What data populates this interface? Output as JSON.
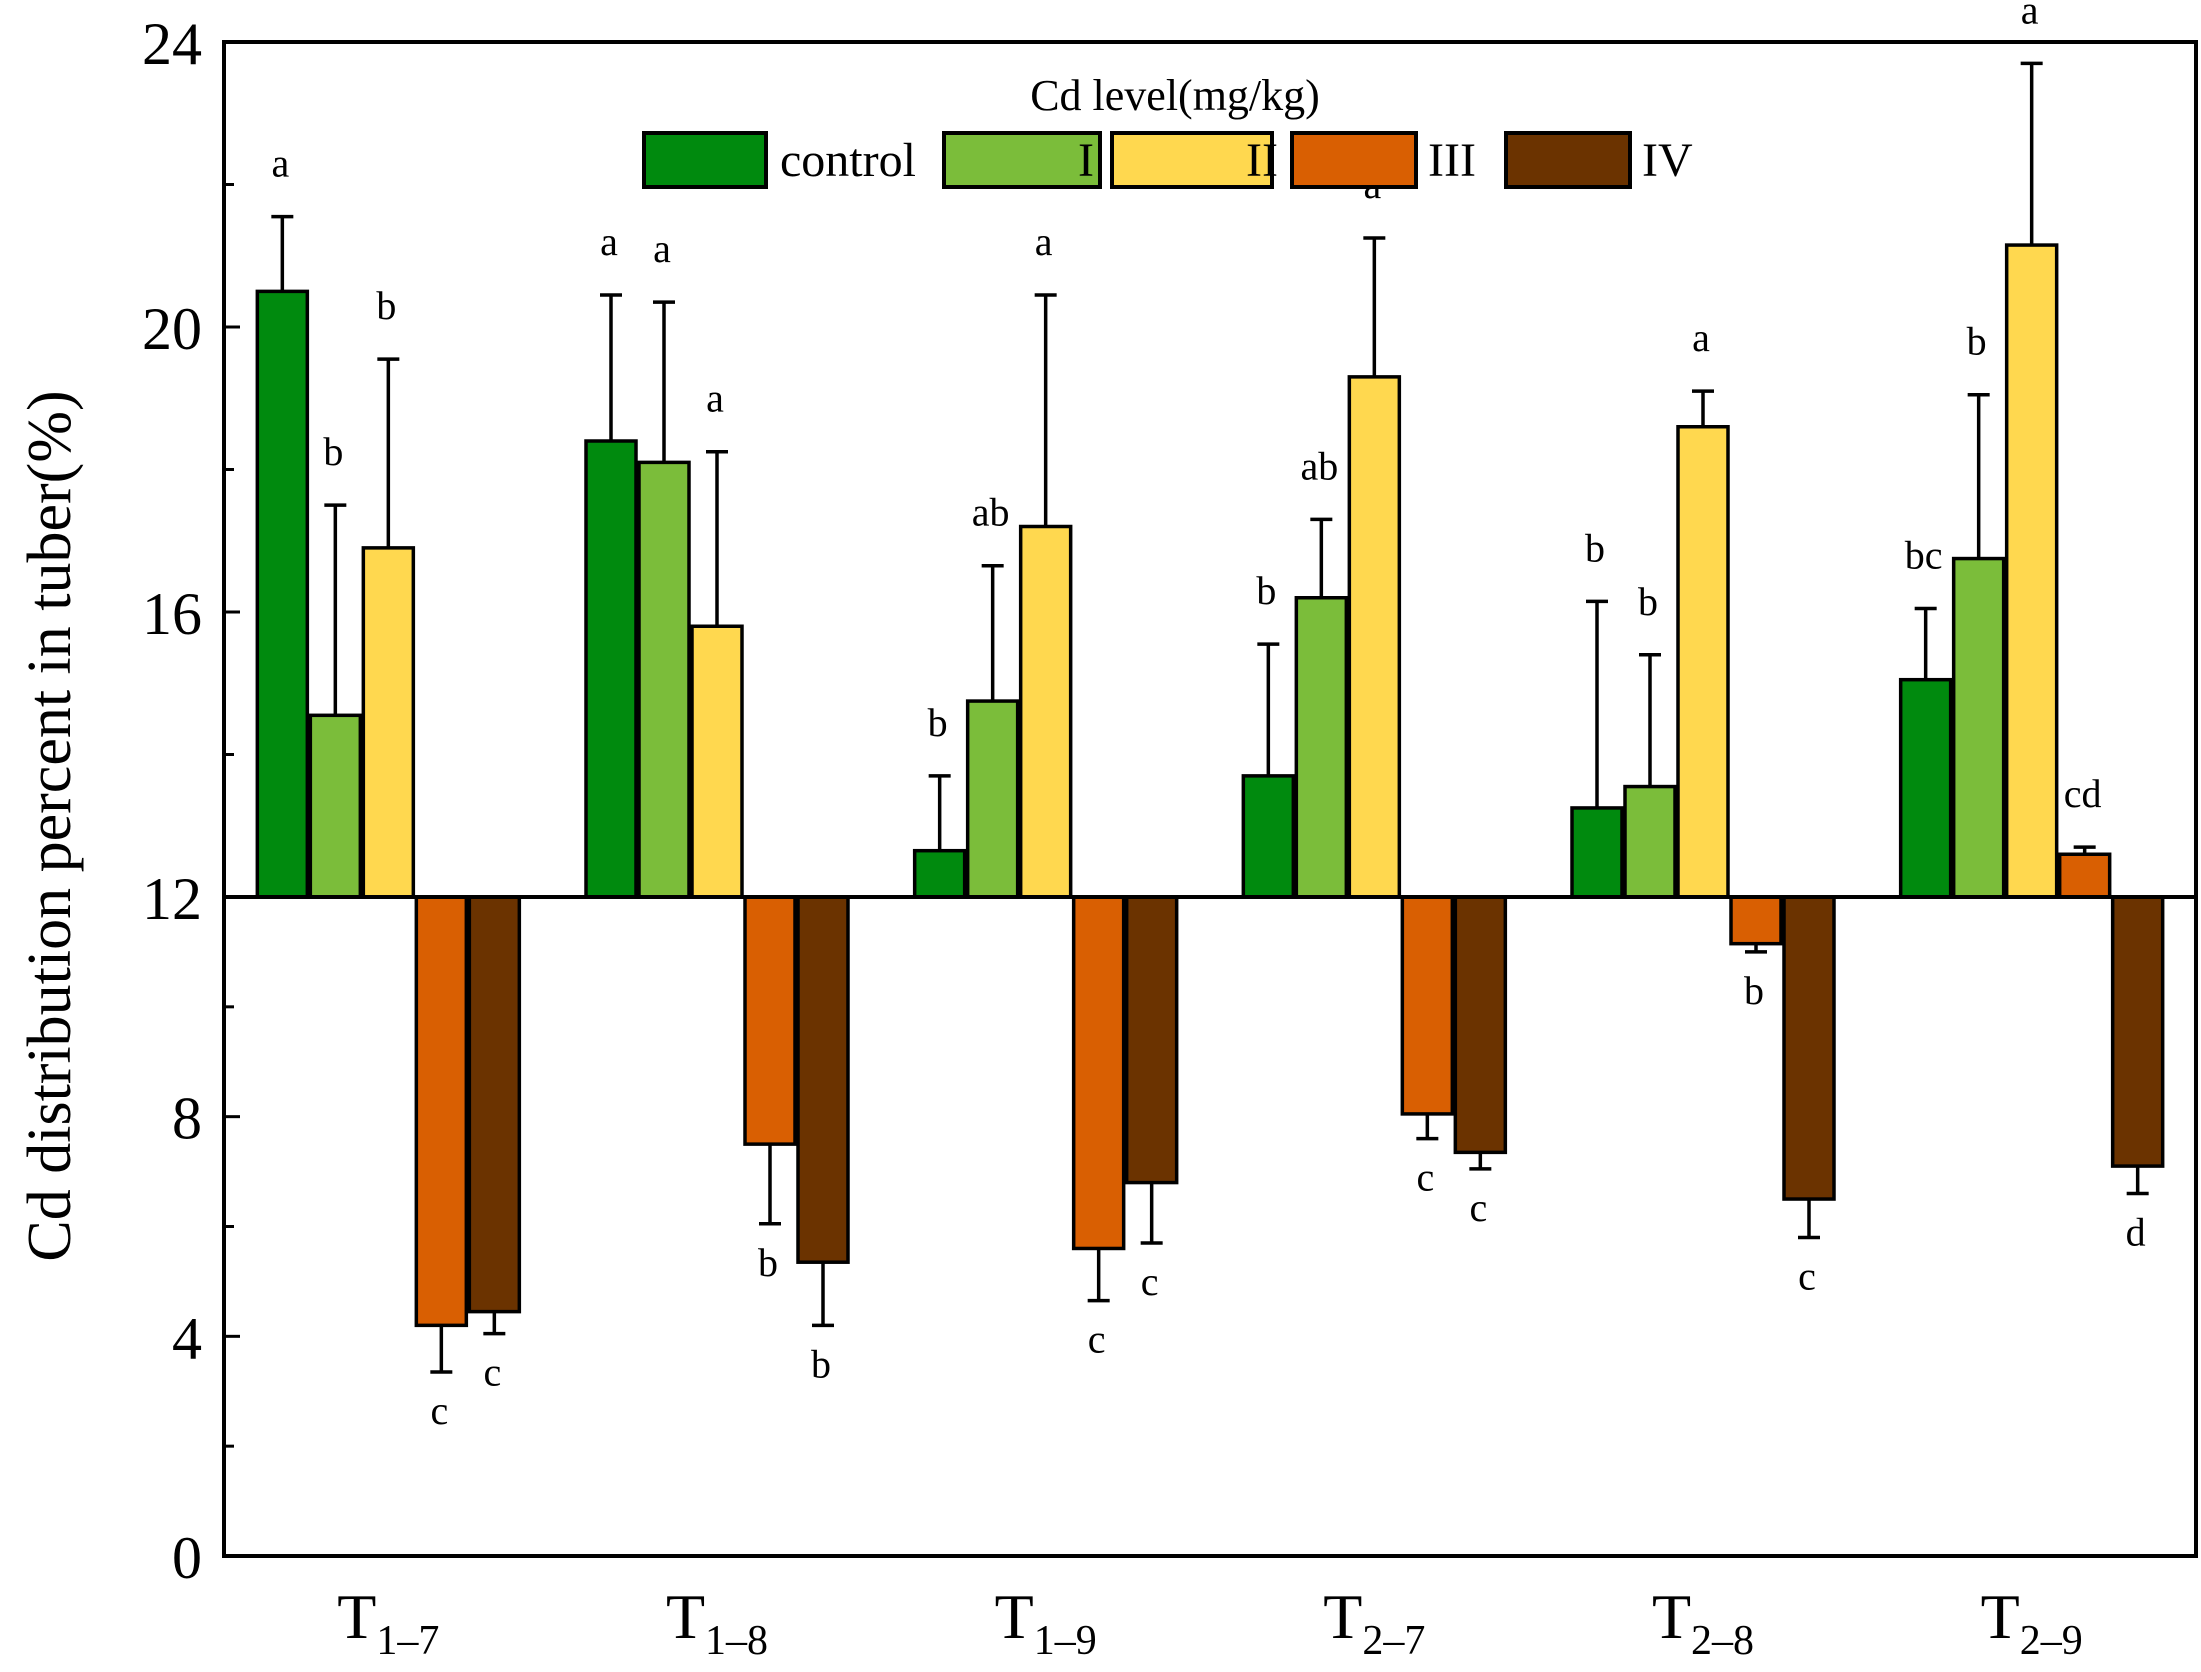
{
  "chart_data": {
    "type": "bar",
    "title": "",
    "xlabel": "",
    "ylabel": "Cd distribution percent in tuber(%)",
    "ylim": [
      0,
      24
    ],
    "y_ticks": [
      "0",
      "4",
      "8",
      "12",
      "16",
      "20",
      "24"
    ],
    "upper_axis": {
      "from": 12,
      "to": 24
    },
    "lower_axis": {
      "from": 0,
      "to": 12
    },
    "baseline": 12,
    "legend": {
      "title": "Cd level(mg/kg)",
      "position": "top-center"
    },
    "categories": [
      {
        "main": "T",
        "sub": "1–7"
      },
      {
        "main": "T",
        "sub": "1–8"
      },
      {
        "main": "T",
        "sub": "1–9"
      },
      {
        "main": "T",
        "sub": "2–7"
      },
      {
        "main": "T",
        "sub": "2–8"
      },
      {
        "main": "T",
        "sub": "2–9"
      }
    ],
    "series": [
      {
        "name": "control",
        "color": "#008A0E",
        "values": [
          20.5,
          18.4,
          12.65,
          13.7,
          13.25,
          15.05
        ],
        "errors": [
          1.05,
          2.05,
          1.05,
          1.85,
          2.9,
          1.0
        ],
        "letters": [
          "a",
          "a",
          "b",
          "b",
          "b",
          "bc"
        ]
      },
      {
        "name": "I",
        "color": "#7BBD3A",
        "values": [
          14.55,
          18.1,
          14.75,
          16.2,
          13.55,
          16.75
        ],
        "errors": [
          2.95,
          2.25,
          1.9,
          1.1,
          1.85,
          2.3
        ],
        "letters": [
          "b",
          "a",
          "ab",
          "ab",
          "b",
          "b"
        ]
      },
      {
        "name": "II",
        "color": "#FFD84F",
        "values": [
          16.9,
          15.8,
          17.2,
          19.3,
          18.6,
          21.15
        ],
        "errors": [
          2.65,
          2.45,
          3.25,
          1.95,
          0.5,
          2.55
        ],
        "letters": [
          "b",
          "a",
          "a",
          "a",
          "a",
          "a"
        ]
      },
      {
        "name": "III",
        "color": "#D95F02",
        "values": [
          4.2,
          7.5,
          5.6,
          8.05,
          11.15,
          12.6
        ],
        "errors": [
          0.85,
          1.45,
          0.95,
          0.45,
          0.15,
          0.1
        ],
        "letters": [
          "c",
          "b",
          "c",
          "c",
          "b",
          "cd"
        ]
      },
      {
        "name": "IV",
        "color": "#6B3300",
        "values": [
          4.45,
          5.35,
          6.8,
          7.35,
          6.5,
          7.1
        ],
        "errors": [
          0.4,
          1.15,
          1.1,
          0.3,
          0.7,
          0.5
        ],
        "letters": [
          "c",
          "b",
          "c",
          "c",
          "c",
          "d"
        ]
      }
    ]
  }
}
